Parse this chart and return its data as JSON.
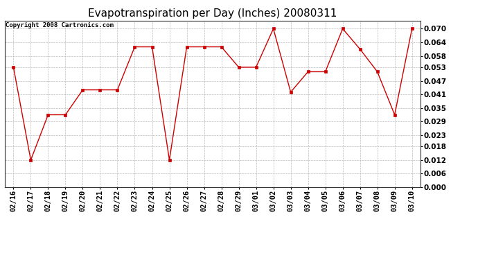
{
  "title": "Evapotranspiration per Day (Inches) 20080311",
  "copyright_text": "Copyright 2008 Cartronics.com",
  "dates": [
    "02/16",
    "02/17",
    "02/18",
    "02/19",
    "02/20",
    "02/21",
    "02/22",
    "02/23",
    "02/24",
    "02/25",
    "02/26",
    "02/27",
    "02/28",
    "02/29",
    "03/01",
    "03/02",
    "03/03",
    "03/04",
    "03/05",
    "03/06",
    "03/07",
    "03/08",
    "03/09",
    "03/10"
  ],
  "values": [
    0.053,
    0.012,
    0.032,
    0.032,
    0.043,
    0.043,
    0.043,
    0.062,
    0.062,
    0.012,
    0.062,
    0.062,
    0.062,
    0.053,
    0.053,
    0.07,
    0.042,
    0.051,
    0.051,
    0.07,
    0.061,
    0.051,
    0.032,
    0.07
  ],
  "line_color": "#cc0000",
  "marker": "s",
  "marker_size": 2.5,
  "background_color": "#ffffff",
  "grid_color": "#bbbbbb",
  "ylim": [
    0.0,
    0.0735
  ],
  "yticks": [
    0.0,
    0.006,
    0.012,
    0.018,
    0.023,
    0.029,
    0.035,
    0.041,
    0.047,
    0.053,
    0.058,
    0.064,
    0.07
  ],
  "title_fontsize": 11,
  "copyright_fontsize": 6.5,
  "tick_fontsize": 7.5,
  "fig_width": 6.9,
  "fig_height": 3.75
}
